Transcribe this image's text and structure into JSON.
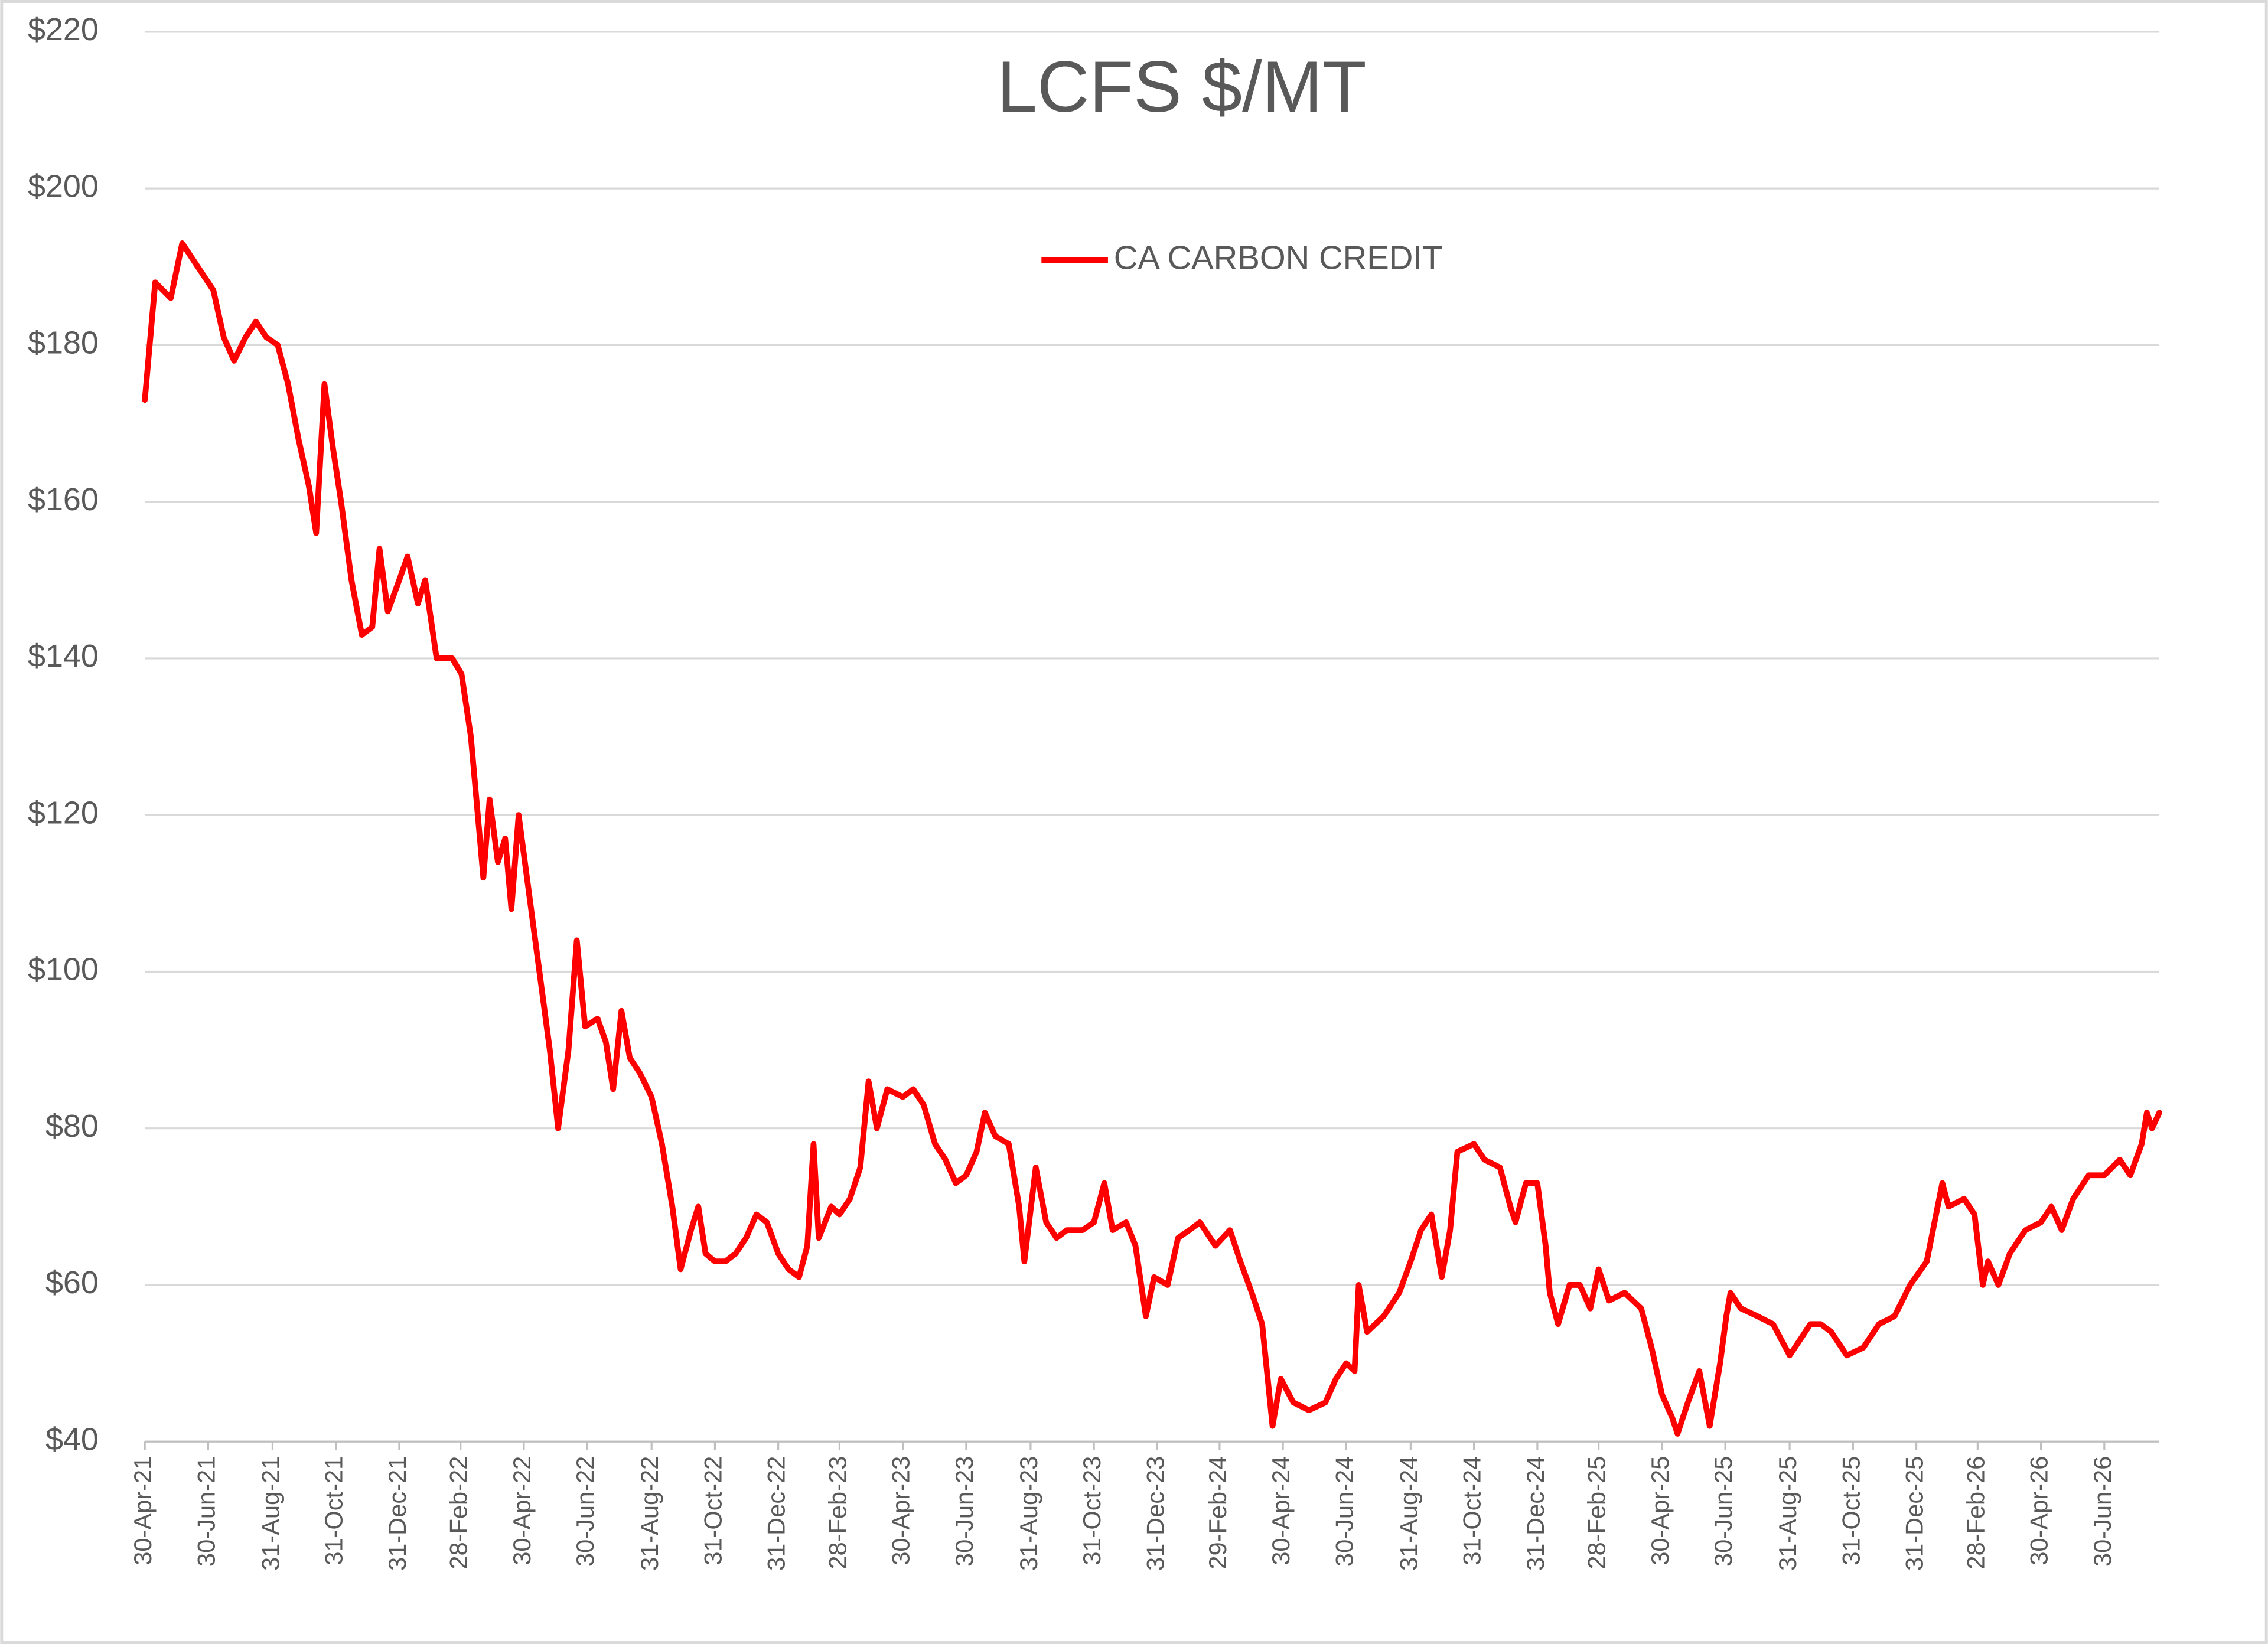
{
  "chart_data": {
    "type": "line",
    "title": "LCFS $/MT",
    "x": [
      "2021-04-30",
      "2021-05-10",
      "2021-05-25",
      "2021-06-05",
      "2021-06-20",
      "2021-07-05",
      "2021-07-15",
      "2021-07-25",
      "2021-08-05",
      "2021-08-15",
      "2021-08-25",
      "2021-09-05",
      "2021-09-15",
      "2021-09-25",
      "2021-10-05",
      "2021-10-12",
      "2021-10-20",
      "2021-10-28",
      "2021-11-05",
      "2021-11-15",
      "2021-11-25",
      "2021-12-05",
      "2021-12-12",
      "2021-12-20",
      "2021-12-31",
      "2022-01-08",
      "2022-01-18",
      "2022-01-25",
      "2022-02-05",
      "2022-02-20",
      "2022-03-01",
      "2022-03-10",
      "2022-03-18",
      "2022-03-22",
      "2022-03-28",
      "2022-04-05",
      "2022-04-12",
      "2022-04-18",
      "2022-04-25",
      "2022-05-05",
      "2022-05-15",
      "2022-05-25",
      "2022-06-02",
      "2022-06-12",
      "2022-06-20",
      "2022-06-28",
      "2022-07-10",
      "2022-07-18",
      "2022-07-25",
      "2022-08-02",
      "2022-08-10",
      "2022-08-20",
      "2022-08-31",
      "2022-09-10",
      "2022-09-20",
      "2022-09-28",
      "2022-10-08",
      "2022-10-15",
      "2022-10-22",
      "2022-10-31",
      "2022-11-10",
      "2022-11-20",
      "2022-11-30",
      "2022-12-10",
      "2022-12-20",
      "2022-12-31",
      "2023-01-10",
      "2023-01-20",
      "2023-01-28",
      "2023-02-03",
      "2023-02-08",
      "2023-02-20",
      "2023-02-28",
      "2023-03-10",
      "2023-03-20",
      "2023-03-28",
      "2023-04-05",
      "2023-04-15",
      "2023-04-30",
      "2023-05-10",
      "2023-05-20",
      "2023-05-31",
      "2023-06-10",
      "2023-06-20",
      "2023-06-30",
      "2023-07-10",
      "2023-07-18",
      "2023-07-28",
      "2023-08-10",
      "2023-08-20",
      "2023-08-25",
      "2023-09-05",
      "2023-09-15",
      "2023-09-25",
      "2023-10-05",
      "2023-10-20",
      "2023-10-31",
      "2023-11-10",
      "2023-11-18",
      "2023-12-01",
      "2023-12-10",
      "2023-12-20",
      "2023-12-28",
      "2024-01-10",
      "2024-01-20",
      "2024-01-31",
      "2024-02-10",
      "2024-02-25",
      "2024-03-10",
      "2024-03-20",
      "2024-03-31",
      "2024-04-10",
      "2024-04-20",
      "2024-04-28",
      "2024-05-10",
      "2024-05-25",
      "2024-06-10",
      "2024-06-20",
      "2024-06-30",
      "2024-07-08",
      "2024-07-12",
      "2024-07-20",
      "2024-08-05",
      "2024-08-20",
      "2024-08-31",
      "2024-09-10",
      "2024-09-20",
      "2024-09-30",
      "2024-10-08",
      "2024-10-15",
      "2024-10-31",
      "2024-11-10",
      "2024-11-25",
      "2024-12-05",
      "2024-12-10",
      "2024-12-20",
      "2024-12-31",
      "2025-01-08",
      "2025-01-12",
      "2025-01-20",
      "2025-01-31",
      "2025-02-10",
      "2025-02-20",
      "2025-02-28",
      "2025-03-10",
      "2025-03-25",
      "2025-04-10",
      "2025-04-20",
      "2025-04-30",
      "2025-05-10",
      "2025-05-15",
      "2025-05-25",
      "2025-06-05",
      "2025-06-15",
      "2025-06-25",
      "2025-07-01",
      "2025-07-05",
      "2025-07-15",
      "2025-07-31",
      "2025-08-15",
      "2025-08-31",
      "2025-09-10",
      "2025-09-20",
      "2025-09-30",
      "2025-10-10",
      "2025-10-25",
      "2025-11-10",
      "2025-11-25",
      "2025-12-10",
      "2025-12-25",
      "2026-01-10",
      "2026-01-25",
      "2026-01-31",
      "2026-02-15",
      "2026-02-25",
      "2026-03-05",
      "2026-03-10",
      "2026-03-20",
      "2026-03-31",
      "2026-04-15",
      "2026-04-30",
      "2026-05-10",
      "2026-05-20",
      "2026-05-31",
      "2026-06-15",
      "2026-06-30",
      "2026-07-15",
      "2026-07-25",
      "2026-08-05",
      "2026-08-10",
      "2026-08-15",
      "2026-08-22"
    ],
    "series": [
      {
        "name": "CA CARBON CREDIT",
        "color": "#ff0000",
        "values": [
          173,
          188,
          186,
          193,
          190,
          187,
          181,
          178,
          181,
          183,
          181,
          180,
          175,
          168,
          162,
          156,
          175,
          167,
          160,
          150,
          143,
          144,
          154,
          146,
          150,
          153,
          147,
          150,
          140,
          140,
          138,
          130,
          118,
          112,
          122,
          114,
          117,
          108,
          120,
          110,
          100,
          90,
          80,
          90,
          104,
          93,
          94,
          91,
          85,
          95,
          89,
          87,
          84,
          78,
          70,
          62,
          67,
          70,
          64,
          63,
          63,
          64,
          66,
          69,
          68,
          64,
          62,
          61,
          65,
          78,
          66,
          70,
          69,
          71,
          75,
          86,
          80,
          85,
          84,
          85,
          83,
          78,
          76,
          73,
          74,
          77,
          82,
          79,
          78,
          70,
          63,
          75,
          68,
          66,
          67,
          67,
          68,
          73,
          67,
          68,
          65,
          56,
          61,
          60,
          66,
          67,
          68,
          65,
          67,
          63,
          59,
          55,
          42,
          48,
          45,
          44,
          45,
          48,
          50,
          49,
          60,
          54,
          56,
          59,
          63,
          67,
          69,
          61,
          67,
          77,
          78,
          76,
          75,
          70,
          68,
          73,
          73,
          65,
          59,
          55,
          60,
          60,
          57,
          62,
          58,
          59,
          57,
          52,
          46,
          43,
          41,
          45,
          49,
          42,
          50,
          56,
          59,
          57,
          56,
          55,
          51,
          53,
          55,
          55,
          54,
          51,
          52,
          55,
          56,
          60,
          63,
          73,
          70,
          71,
          69,
          60,
          63,
          60,
          64,
          67,
          68,
          70,
          67,
          71,
          74,
          74,
          76,
          74,
          78,
          82,
          80,
          82
        ]
      }
    ],
    "xlim": [
      "2021-04-30",
      "2026-08-22"
    ],
    "xticks": [
      {
        "value": "2021-04-30",
        "label": "30-Apr-21"
      },
      {
        "value": "2021-06-30",
        "label": "30-Jun-21"
      },
      {
        "value": "2021-08-31",
        "label": "31-Aug-21"
      },
      {
        "value": "2021-10-31",
        "label": "31-Oct-21"
      },
      {
        "value": "2021-12-31",
        "label": "31-Dec-21"
      },
      {
        "value": "2022-02-28",
        "label": "28-Feb-22"
      },
      {
        "value": "2022-04-30",
        "label": "30-Apr-22"
      },
      {
        "value": "2022-06-30",
        "label": "30-Jun-22"
      },
      {
        "value": "2022-08-31",
        "label": "31-Aug-22"
      },
      {
        "value": "2022-10-31",
        "label": "31-Oct-22"
      },
      {
        "value": "2022-12-31",
        "label": "31-Dec-22"
      },
      {
        "value": "2023-02-28",
        "label": "28-Feb-23"
      },
      {
        "value": "2023-04-30",
        "label": "30-Apr-23"
      },
      {
        "value": "2023-06-30",
        "label": "30-Jun-23"
      },
      {
        "value": "2023-08-31",
        "label": "31-Aug-23"
      },
      {
        "value": "2023-10-31",
        "label": "31-Oct-23"
      },
      {
        "value": "2023-12-31",
        "label": "31-Dec-23"
      },
      {
        "value": "2024-02-29",
        "label": "29-Feb-24"
      },
      {
        "value": "2024-04-30",
        "label": "30-Apr-24"
      },
      {
        "value": "2024-06-30",
        "label": "30-Jun-24"
      },
      {
        "value": "2024-08-31",
        "label": "31-Aug-24"
      },
      {
        "value": "2024-10-31",
        "label": "31-Oct-24"
      },
      {
        "value": "2024-12-31",
        "label": "31-Dec-24"
      },
      {
        "value": "2025-02-28",
        "label": "28-Feb-25"
      },
      {
        "value": "2025-04-30",
        "label": "30-Apr-25"
      },
      {
        "value": "2025-06-30",
        "label": "30-Jun-25"
      },
      {
        "value": "2025-08-31",
        "label": "31-Aug-25"
      },
      {
        "value": "2025-10-31",
        "label": "31-Oct-25"
      },
      {
        "value": "2025-12-31",
        "label": "31-Dec-25"
      },
      {
        "value": "2026-02-28",
        "label": "28-Feb-26"
      },
      {
        "value": "2026-04-30",
        "label": "30-Apr-26"
      },
      {
        "value": "2026-06-30",
        "label": "30-Jun-26"
      }
    ],
    "ylim": [
      40,
      220
    ],
    "yticks": [
      {
        "value": 40,
        "label": "$40"
      },
      {
        "value": 60,
        "label": "$60"
      },
      {
        "value": 80,
        "label": "$80"
      },
      {
        "value": 100,
        "label": "$100"
      },
      {
        "value": 120,
        "label": "$120"
      },
      {
        "value": 140,
        "label": "$140"
      },
      {
        "value": 160,
        "label": "$160"
      },
      {
        "value": 180,
        "label": "$180"
      },
      {
        "value": 200,
        "label": "$200"
      },
      {
        "value": 220,
        "label": "$220"
      }
    ],
    "grid": true,
    "legend": "top"
  }
}
